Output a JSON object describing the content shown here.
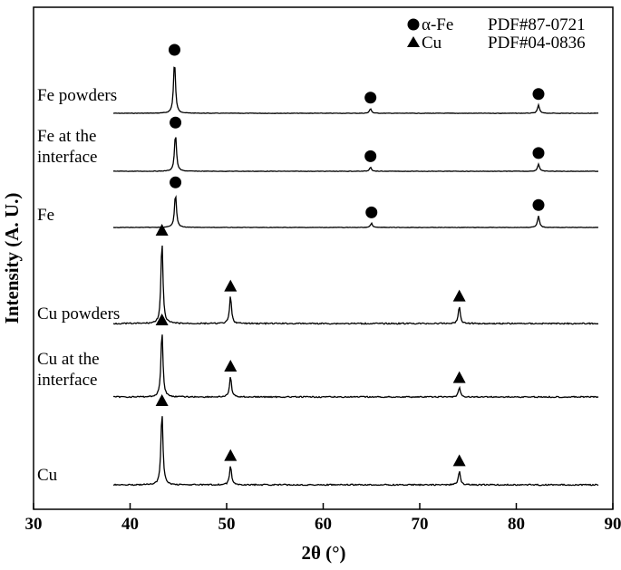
{
  "chart_data": {
    "type": "line",
    "xlabel": "2θ (°)",
    "ylabel": "Intensity (A. U.)",
    "xlim": [
      30,
      90
    ],
    "x_ticks": [
      "30",
      "40",
      "50",
      "60",
      "70",
      "80",
      "90"
    ],
    "legend": {
      "placement": "top-right",
      "entries": [
        {
          "marker": "circle",
          "phase": "α-Fe",
          "card": "PDF#87-0721"
        },
        {
          "marker": "triangle",
          "phase": "Cu",
          "card": "PDF#04-0836"
        }
      ]
    },
    "series": [
      {
        "name": "Fe powders",
        "label_lines": [
          "Fe powders"
        ],
        "marker": "circle",
        "peaks": [
          {
            "x": 44.6,
            "h": 1.0
          },
          {
            "x": 64.9,
            "h": 0.09
          },
          {
            "x": 82.3,
            "h": 0.16
          }
        ]
      },
      {
        "name": "Fe at the interface",
        "label_lines": [
          "Fe at the",
          "interface"
        ],
        "marker": "circle",
        "peaks": [
          {
            "x": 44.7,
            "h": 0.72
          },
          {
            "x": 64.9,
            "h": 0.08
          },
          {
            "x": 82.3,
            "h": 0.14
          }
        ]
      },
      {
        "name": "Fe",
        "label_lines": [
          "Fe"
        ],
        "marker": "circle",
        "peaks": [
          {
            "x": 44.7,
            "h": 0.65
          },
          {
            "x": 65.0,
            "h": 0.08
          },
          {
            "x": 82.3,
            "h": 0.22
          }
        ]
      },
      {
        "name": "Cu powders",
        "label_lines": [
          "Cu powders"
        ],
        "marker": "triangle",
        "peaks": [
          {
            "x": 43.3,
            "h": 1.0
          },
          {
            "x": 50.4,
            "h": 0.33
          },
          {
            "x": 74.1,
            "h": 0.21
          }
        ]
      },
      {
        "name": "Cu at the interface",
        "label_lines": [
          "Cu at the",
          "interface"
        ],
        "marker": "triangle",
        "peaks": [
          {
            "x": 43.3,
            "h": 1.0
          },
          {
            "x": 50.4,
            "h": 0.31
          },
          {
            "x": 74.1,
            "h": 0.14
          }
        ]
      },
      {
        "name": "Cu",
        "label_lines": [
          "Cu"
        ],
        "marker": "triangle",
        "peaks": [
          {
            "x": 43.3,
            "h": 1.0
          },
          {
            "x": 50.4,
            "h": 0.26
          },
          {
            "x": 74.1,
            "h": 0.19
          }
        ]
      }
    ]
  }
}
